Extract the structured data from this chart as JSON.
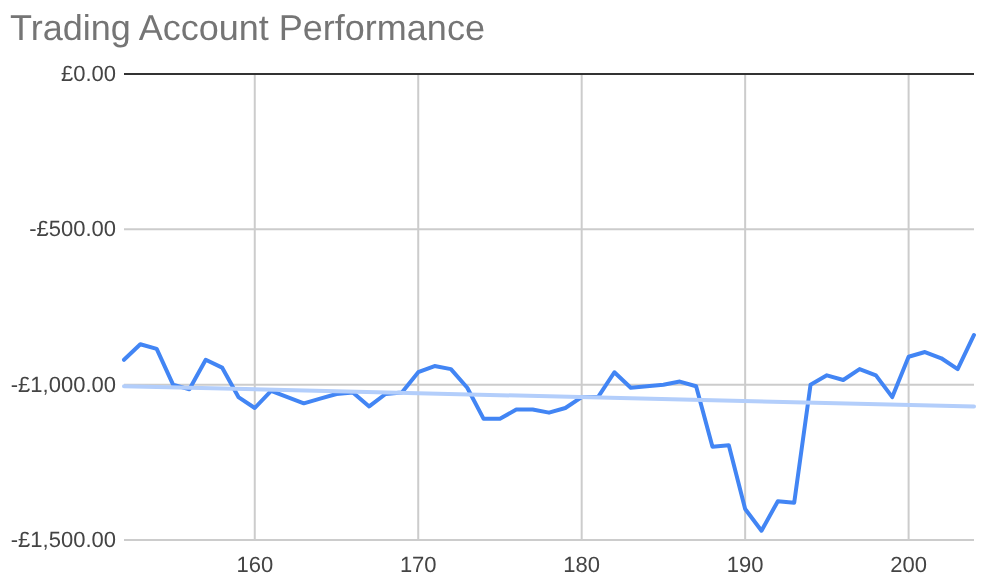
{
  "chart_data": {
    "type": "line",
    "title": "Trading Account Performance",
    "xlim": [
      152,
      204
    ],
    "xticks": [
      160,
      170,
      180,
      190,
      200
    ],
    "ylim": [
      -1500,
      0
    ],
    "yticks": [
      {
        "value": 0,
        "label": "£0.00"
      },
      {
        "value": -500,
        "label": "-£500.00"
      },
      {
        "value": -1000,
        "label": "-£1,000.00"
      },
      {
        "value": -1500,
        "label": "-£1,500.00"
      }
    ],
    "grid": true,
    "marker": "none",
    "line_style": "solid",
    "series": [
      {
        "color": "#4285f4",
        "x": [
          152,
          153,
          154,
          155,
          156,
          157,
          158,
          159,
          160,
          161,
          162,
          163,
          164,
          165,
          166,
          167,
          168,
          169,
          170,
          171,
          172,
          173,
          174,
          175,
          176,
          177,
          178,
          179,
          180,
          181,
          182,
          183,
          184,
          185,
          186,
          187,
          188,
          189,
          190,
          191,
          192,
          193,
          194,
          195,
          196,
          197,
          198,
          199,
          200,
          201,
          202,
          203,
          204
        ],
        "values": [
          -920,
          -870,
          -885,
          -1000,
          -1015,
          -920,
          -945,
          -1040,
          -1075,
          -1020,
          -1040,
          -1060,
          -1045,
          -1030,
          -1025,
          -1070,
          -1030,
          -1025,
          -960,
          -940,
          -950,
          -1010,
          -1110,
          -1110,
          -1080,
          -1080,
          -1090,
          -1075,
          -1040,
          -1040,
          -960,
          -1010,
          -1005,
          -1000,
          -990,
          -1005,
          -1200,
          -1195,
          -1400,
          -1470,
          -1375,
          -1380,
          -1000,
          -970,
          -985,
          -950,
          -970,
          -1040,
          -910,
          -895,
          -915,
          -950,
          -840
        ]
      },
      {
        "color": "#b3cefb",
        "x": [
          152,
          204
        ],
        "values": [
          -1005,
          -1070
        ]
      }
    ]
  }
}
